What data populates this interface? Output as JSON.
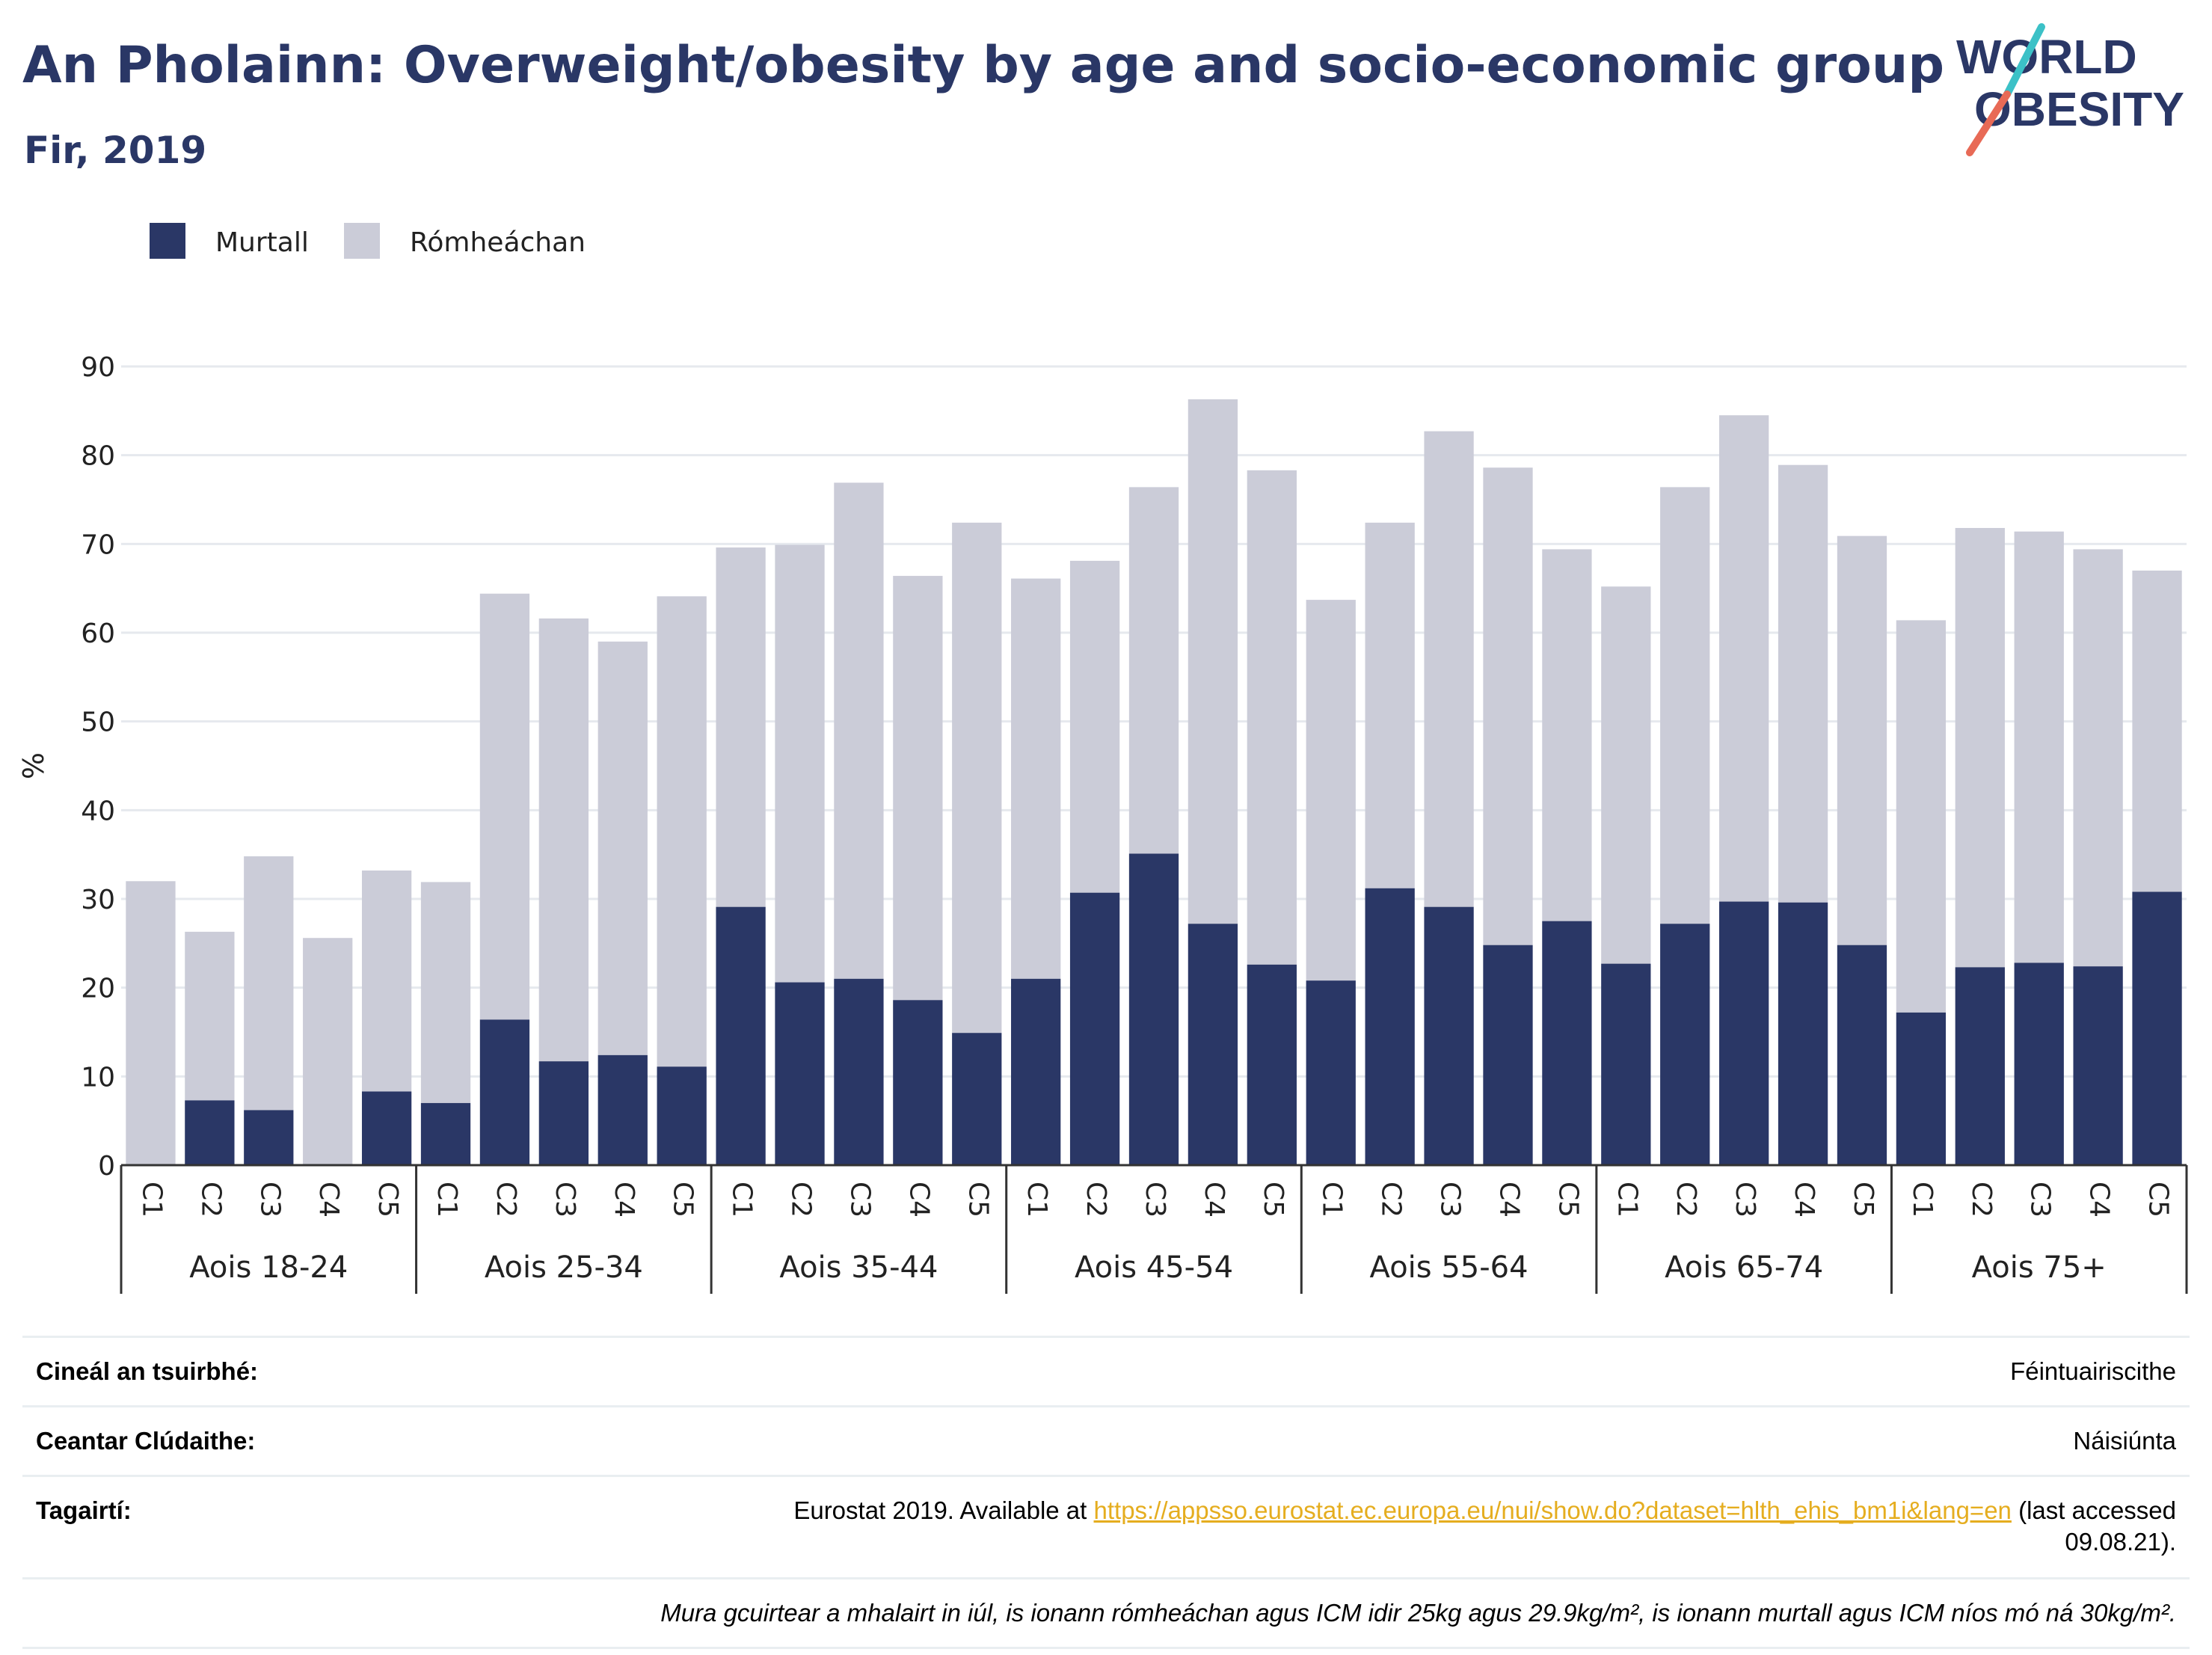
{
  "header": {
    "title": "An Pholainn: Overweight/obesity by age and socio-economic group",
    "subtitle": "Fir, 2019"
  },
  "logo": {
    "line1": "WORLD",
    "line2": "OBESITY",
    "colors": {
      "text": "#2a3766",
      "stripe_teal": "#3cc1c7",
      "stripe_coral": "#e86a56"
    }
  },
  "colors": {
    "obese": "#2a3766",
    "overweight": "#cbccd8",
    "grid": "#e6e9ee",
    "axis": "#333333",
    "link": "#e5ad1f"
  },
  "chart_data": {
    "type": "bar",
    "stacked": true,
    "title": "An Pholainn: Overweight/obesity by age and socio-economic group",
    "subtitle": "Fir, 2019",
    "ylabel": "%",
    "ylim": [
      0,
      90
    ],
    "yticks": [
      0,
      10,
      20,
      30,
      40,
      50,
      60,
      70,
      80,
      90
    ],
    "grid": true,
    "legend_position": "top-left",
    "legend": [
      {
        "name": "Murtall",
        "color": "#2a3766"
      },
      {
        "name": "Rómheáchan",
        "color": "#cbccd8"
      }
    ],
    "subcategories": [
      "C1",
      "C2",
      "C3",
      "C4",
      "C5"
    ],
    "groups": [
      {
        "label": "Aois 18-24",
        "obese": [
          0,
          7.3,
          6.2,
          0,
          8.3
        ],
        "total": [
          32.0,
          26.3,
          34.8,
          25.6,
          33.2
        ]
      },
      {
        "label": "Aois 25-34",
        "obese": [
          7.0,
          16.4,
          11.7,
          12.4,
          11.1
        ],
        "total": [
          31.9,
          64.4,
          61.6,
          59.0,
          64.1
        ]
      },
      {
        "label": "Aois 35-44",
        "obese": [
          29.1,
          20.6,
          21.0,
          18.6,
          14.9
        ],
        "total": [
          69.6,
          69.9,
          76.9,
          66.4,
          72.4
        ]
      },
      {
        "label": "Aois 45-54",
        "obese": [
          21.0,
          30.7,
          35.1,
          27.2,
          22.6
        ],
        "total": [
          66.1,
          68.1,
          76.4,
          86.3,
          78.3
        ]
      },
      {
        "label": "Aois 55-64",
        "obese": [
          20.8,
          31.2,
          29.1,
          24.8,
          27.5
        ],
        "total": [
          63.7,
          72.4,
          82.7,
          78.6,
          69.4
        ]
      },
      {
        "label": "Aois 65-74",
        "obese": [
          22.7,
          27.2,
          29.7,
          29.6,
          24.8
        ],
        "total": [
          65.2,
          76.4,
          84.5,
          78.9,
          70.9
        ]
      },
      {
        "label": "Aois 75+",
        "obese": [
          17.2,
          22.3,
          22.8,
          22.4,
          30.8
        ],
        "total": [
          61.4,
          71.8,
          71.4,
          69.4,
          67.0
        ]
      }
    ]
  },
  "meta": {
    "survey_type_label": "Cineál an tsuirbhé:",
    "survey_type_value": "Féintuairiscithe",
    "area_label": "Ceantar Clúdaithe:",
    "area_value": "Náisiúnta",
    "references_label": "Tagairtí:",
    "references_prefix": "Eurostat 2019. Available at ",
    "references_link": "https://appsso.eurostat.ec.europa.eu/nui/show.do?dataset=hlth_ehis_bm1i&lang=en",
    "references_suffix_1": " (last accessed",
    "references_suffix_2": "09.08.21).",
    "note": "Mura gcuirtear a mhalairt in iúl, is ionann rómheáchan agus ICM idir 25kg agus 29.9kg/m², is ionann murtall agus ICM níos mó ná 30kg/m²."
  }
}
